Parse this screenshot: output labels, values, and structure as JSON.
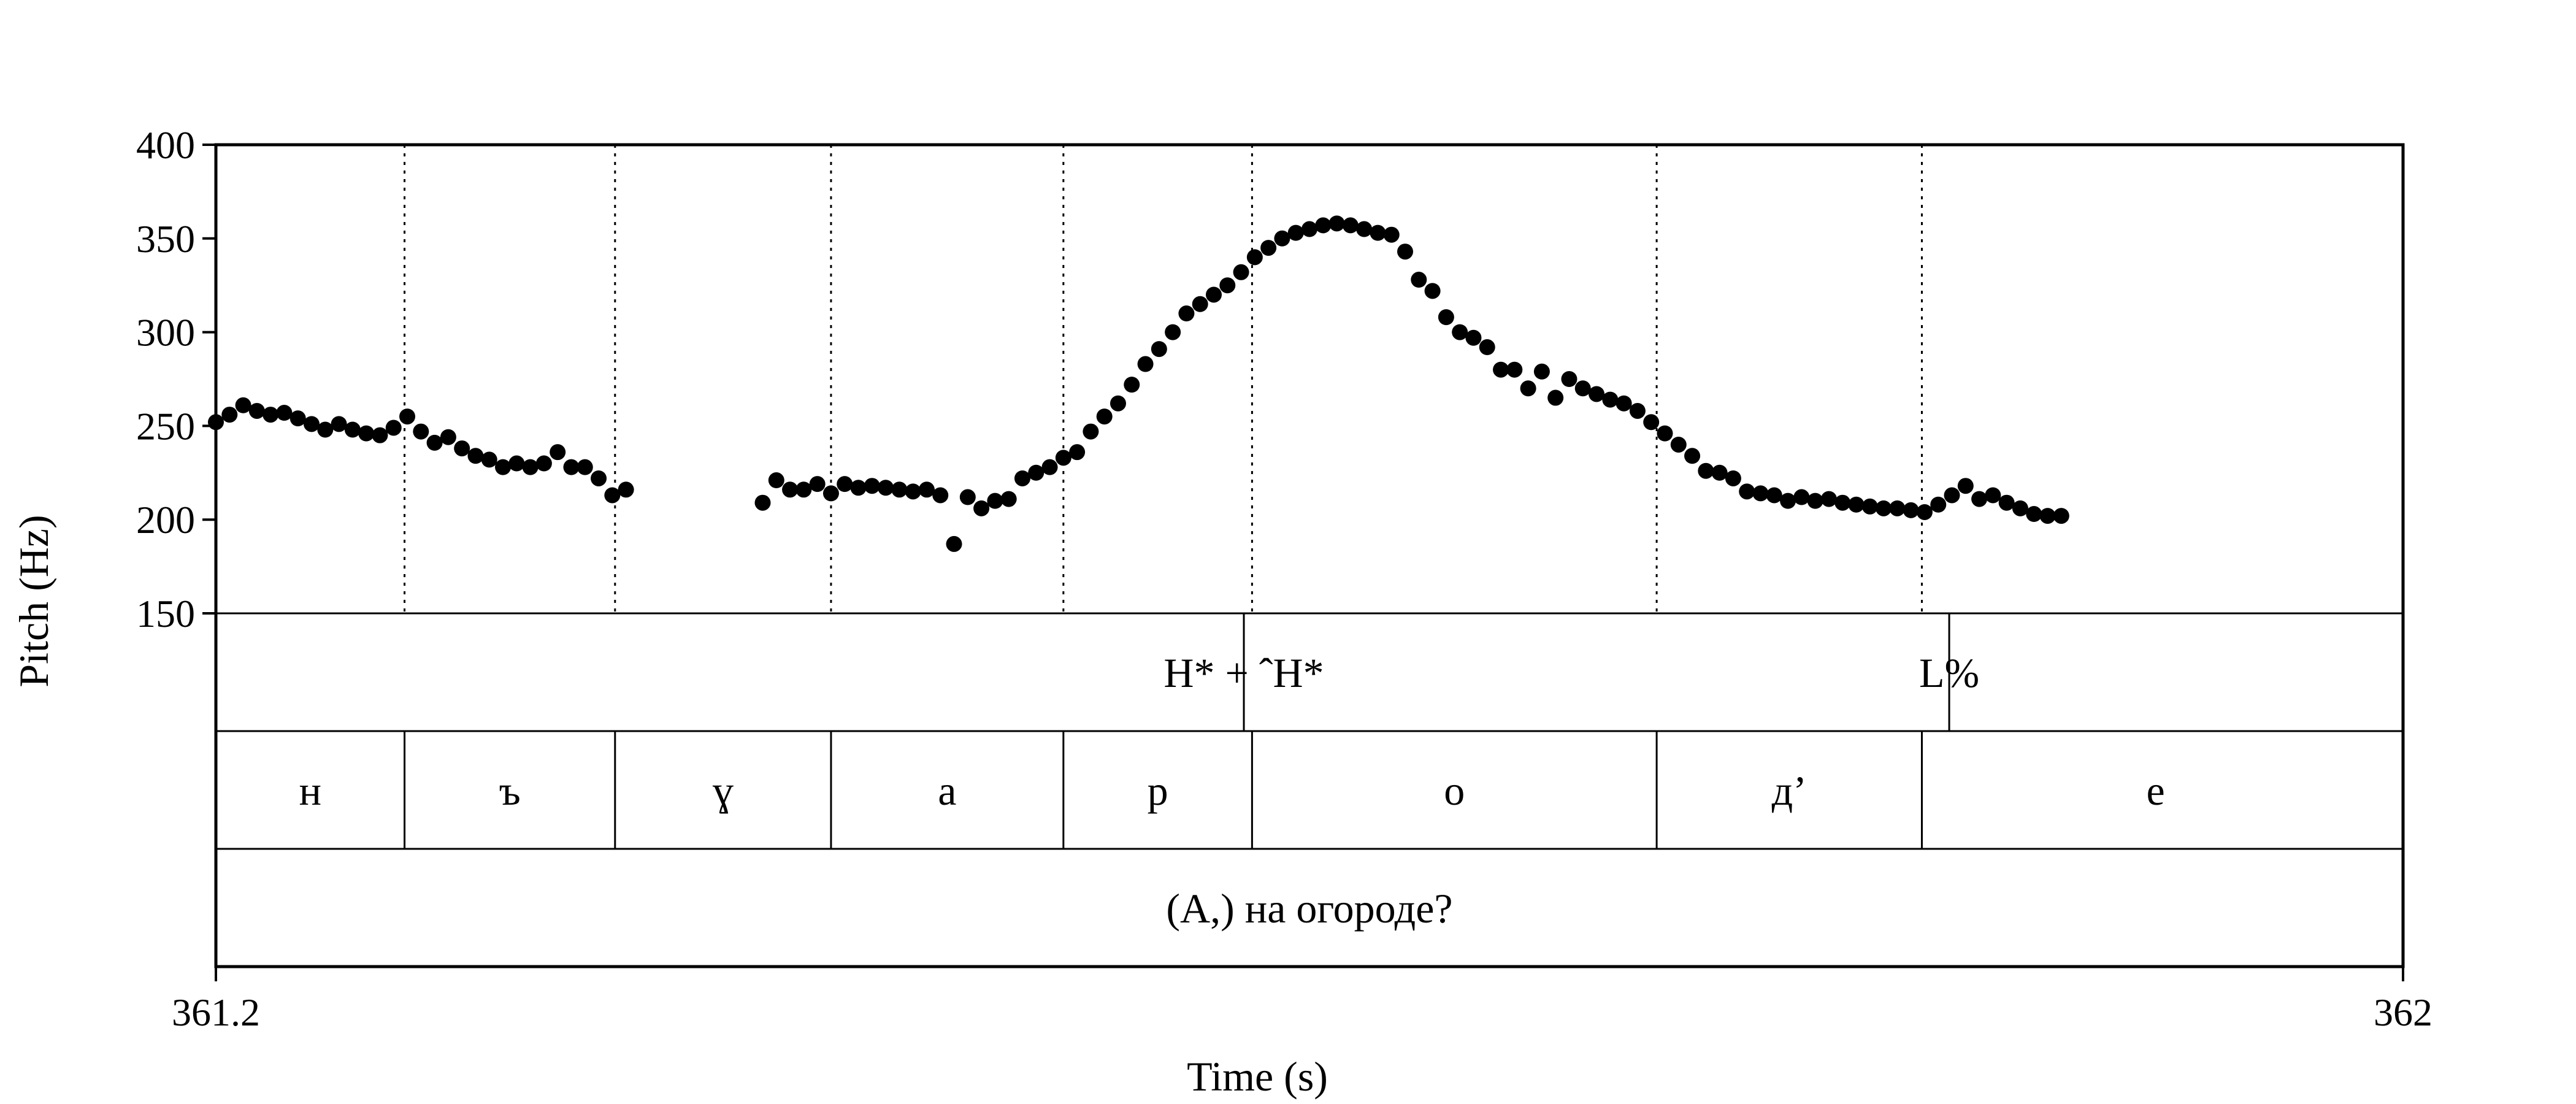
{
  "chart_data": {
    "type": "scatter",
    "title": "",
    "xlabel": "Time (s)",
    "ylabel": "Pitch (Hz)",
    "xlim": [
      361.2,
      362
    ],
    "ylim": [
      150,
      400
    ],
    "x_tick_labels": [
      "361.2",
      "362"
    ],
    "y_ticks": [
      150,
      200,
      250,
      300,
      350,
      400
    ],
    "y_tick_labels": [
      "150",
      "200",
      "250",
      "300",
      "350",
      "400"
    ],
    "grid": false,
    "series": [
      {
        "x": [
          361.2,
          361.205,
          361.21,
          361.215,
          361.22,
          361.225,
          361.23,
          361.235,
          361.24,
          361.245,
          361.25,
          361.255,
          361.26,
          361.265,
          361.27,
          361.275,
          361.28,
          361.285,
          361.29,
          361.295,
          361.3,
          361.305,
          361.31,
          361.315,
          361.32,
          361.325,
          361.33,
          361.335,
          361.34,
          361.345,
          361.35,
          361.355,
          361.36,
          361.365,
          361.37,
          361.375,
          361.38,
          361.385,
          361.39,
          361.395,
          361.4,
          361.405,
          361.41,
          361.415,
          361.42,
          361.425,
          361.43,
          361.435,
          361.44,
          361.445,
          361.45,
          361.455,
          361.46,
          361.465,
          361.47,
          361.475,
          361.48,
          361.485,
          361.49,
          361.495,
          361.5,
          361.505,
          361.51,
          361.515,
          361.52,
          361.525,
          361.53,
          361.535,
          361.54,
          361.545,
          361.55,
          361.555,
          361.56,
          361.565,
          361.57,
          361.575,
          361.58,
          361.585,
          361.59,
          361.595,
          361.6,
          361.605,
          361.61,
          361.615,
          361.62,
          361.625,
          361.63,
          361.635,
          361.64,
          361.645,
          361.65,
          361.655,
          361.66,
          361.665,
          361.67,
          361.675,
          361.68,
          361.685,
          361.69,
          361.695,
          361.7,
          361.705,
          361.71,
          361.715,
          361.72,
          361.725,
          361.73,
          361.735,
          361.74,
          361.745,
          361.75,
          361.755,
          361.76,
          361.765,
          361.77,
          361.775,
          361.78,
          361.785,
          361.79,
          361.795,
          361.8,
          361.805,
          361.81,
          361.815,
          361.82,
          361.825,
          361.83,
          361.835,
          361.84,
          361.845,
          361.85,
          361.855,
          361.86,
          361.865,
          361.87,
          361.875,
          361.88,
          361.885,
          361.89,
          361.895,
          361.9,
          361.905,
          361.91,
          361.915,
          361.92,
          361.925,
          361.93,
          361.935,
          361.94,
          361.945,
          361.95,
          361.955,
          361.96,
          361.965,
          361.97,
          361.975
        ],
        "y": [
          252,
          256,
          261,
          258,
          256,
          257,
          254,
          251,
          248,
          251,
          248,
          246,
          245,
          249,
          255,
          247,
          241,
          244,
          238,
          234,
          232,
          228,
          230,
          228,
          230,
          236,
          228,
          228,
          222,
          213,
          216,
          null,
          null,
          null,
          null,
          null,
          null,
          null,
          null,
          null,
          209,
          221,
          216,
          216,
          219,
          214,
          219,
          217,
          218,
          217,
          216,
          215,
          216,
          213,
          187,
          212,
          206,
          210,
          211,
          222,
          225,
          228,
          233,
          236,
          247,
          255,
          262,
          272,
          283,
          291,
          300,
          310,
          315,
          320,
          325,
          332,
          340,
          345,
          350,
          353,
          355,
          357,
          358,
          357,
          355,
          353,
          352,
          343,
          328,
          322,
          308,
          300,
          297,
          292,
          280,
          280,
          270,
          279,
          265,
          275,
          270,
          267,
          264,
          262,
          258,
          252,
          246,
          240,
          234,
          226,
          225,
          222,
          215,
          214,
          213,
          210,
          212,
          210,
          211,
          209,
          208,
          207,
          206,
          206,
          205,
          204,
          208,
          213,
          218,
          211,
          213,
          209,
          206,
          203,
          202,
          202,
          null,
          null,
          null,
          null,
          null,
          null,
          null,
          null,
          null,
          null,
          null,
          null,
          null,
          null,
          null,
          null,
          null,
          null,
          null,
          null
        ]
      }
    ]
  },
  "tiers": {
    "tones": [
      {
        "label": "H* + ˆH*",
        "time": 361.576
      },
      {
        "label": "L%",
        "time": 361.834
      }
    ],
    "segment_boundaries": [
      361.2,
      361.269,
      361.346,
      361.425,
      361.51,
      361.579,
      361.727,
      361.824,
      361.995
    ],
    "segments": [
      "н",
      "ъ",
      "ɣ",
      "а",
      "р",
      "о",
      "д’",
      "е"
    ],
    "sentence": "(А,) на огороде?"
  },
  "colors": {
    "ink": "#000000",
    "background": "#ffffff"
  }
}
